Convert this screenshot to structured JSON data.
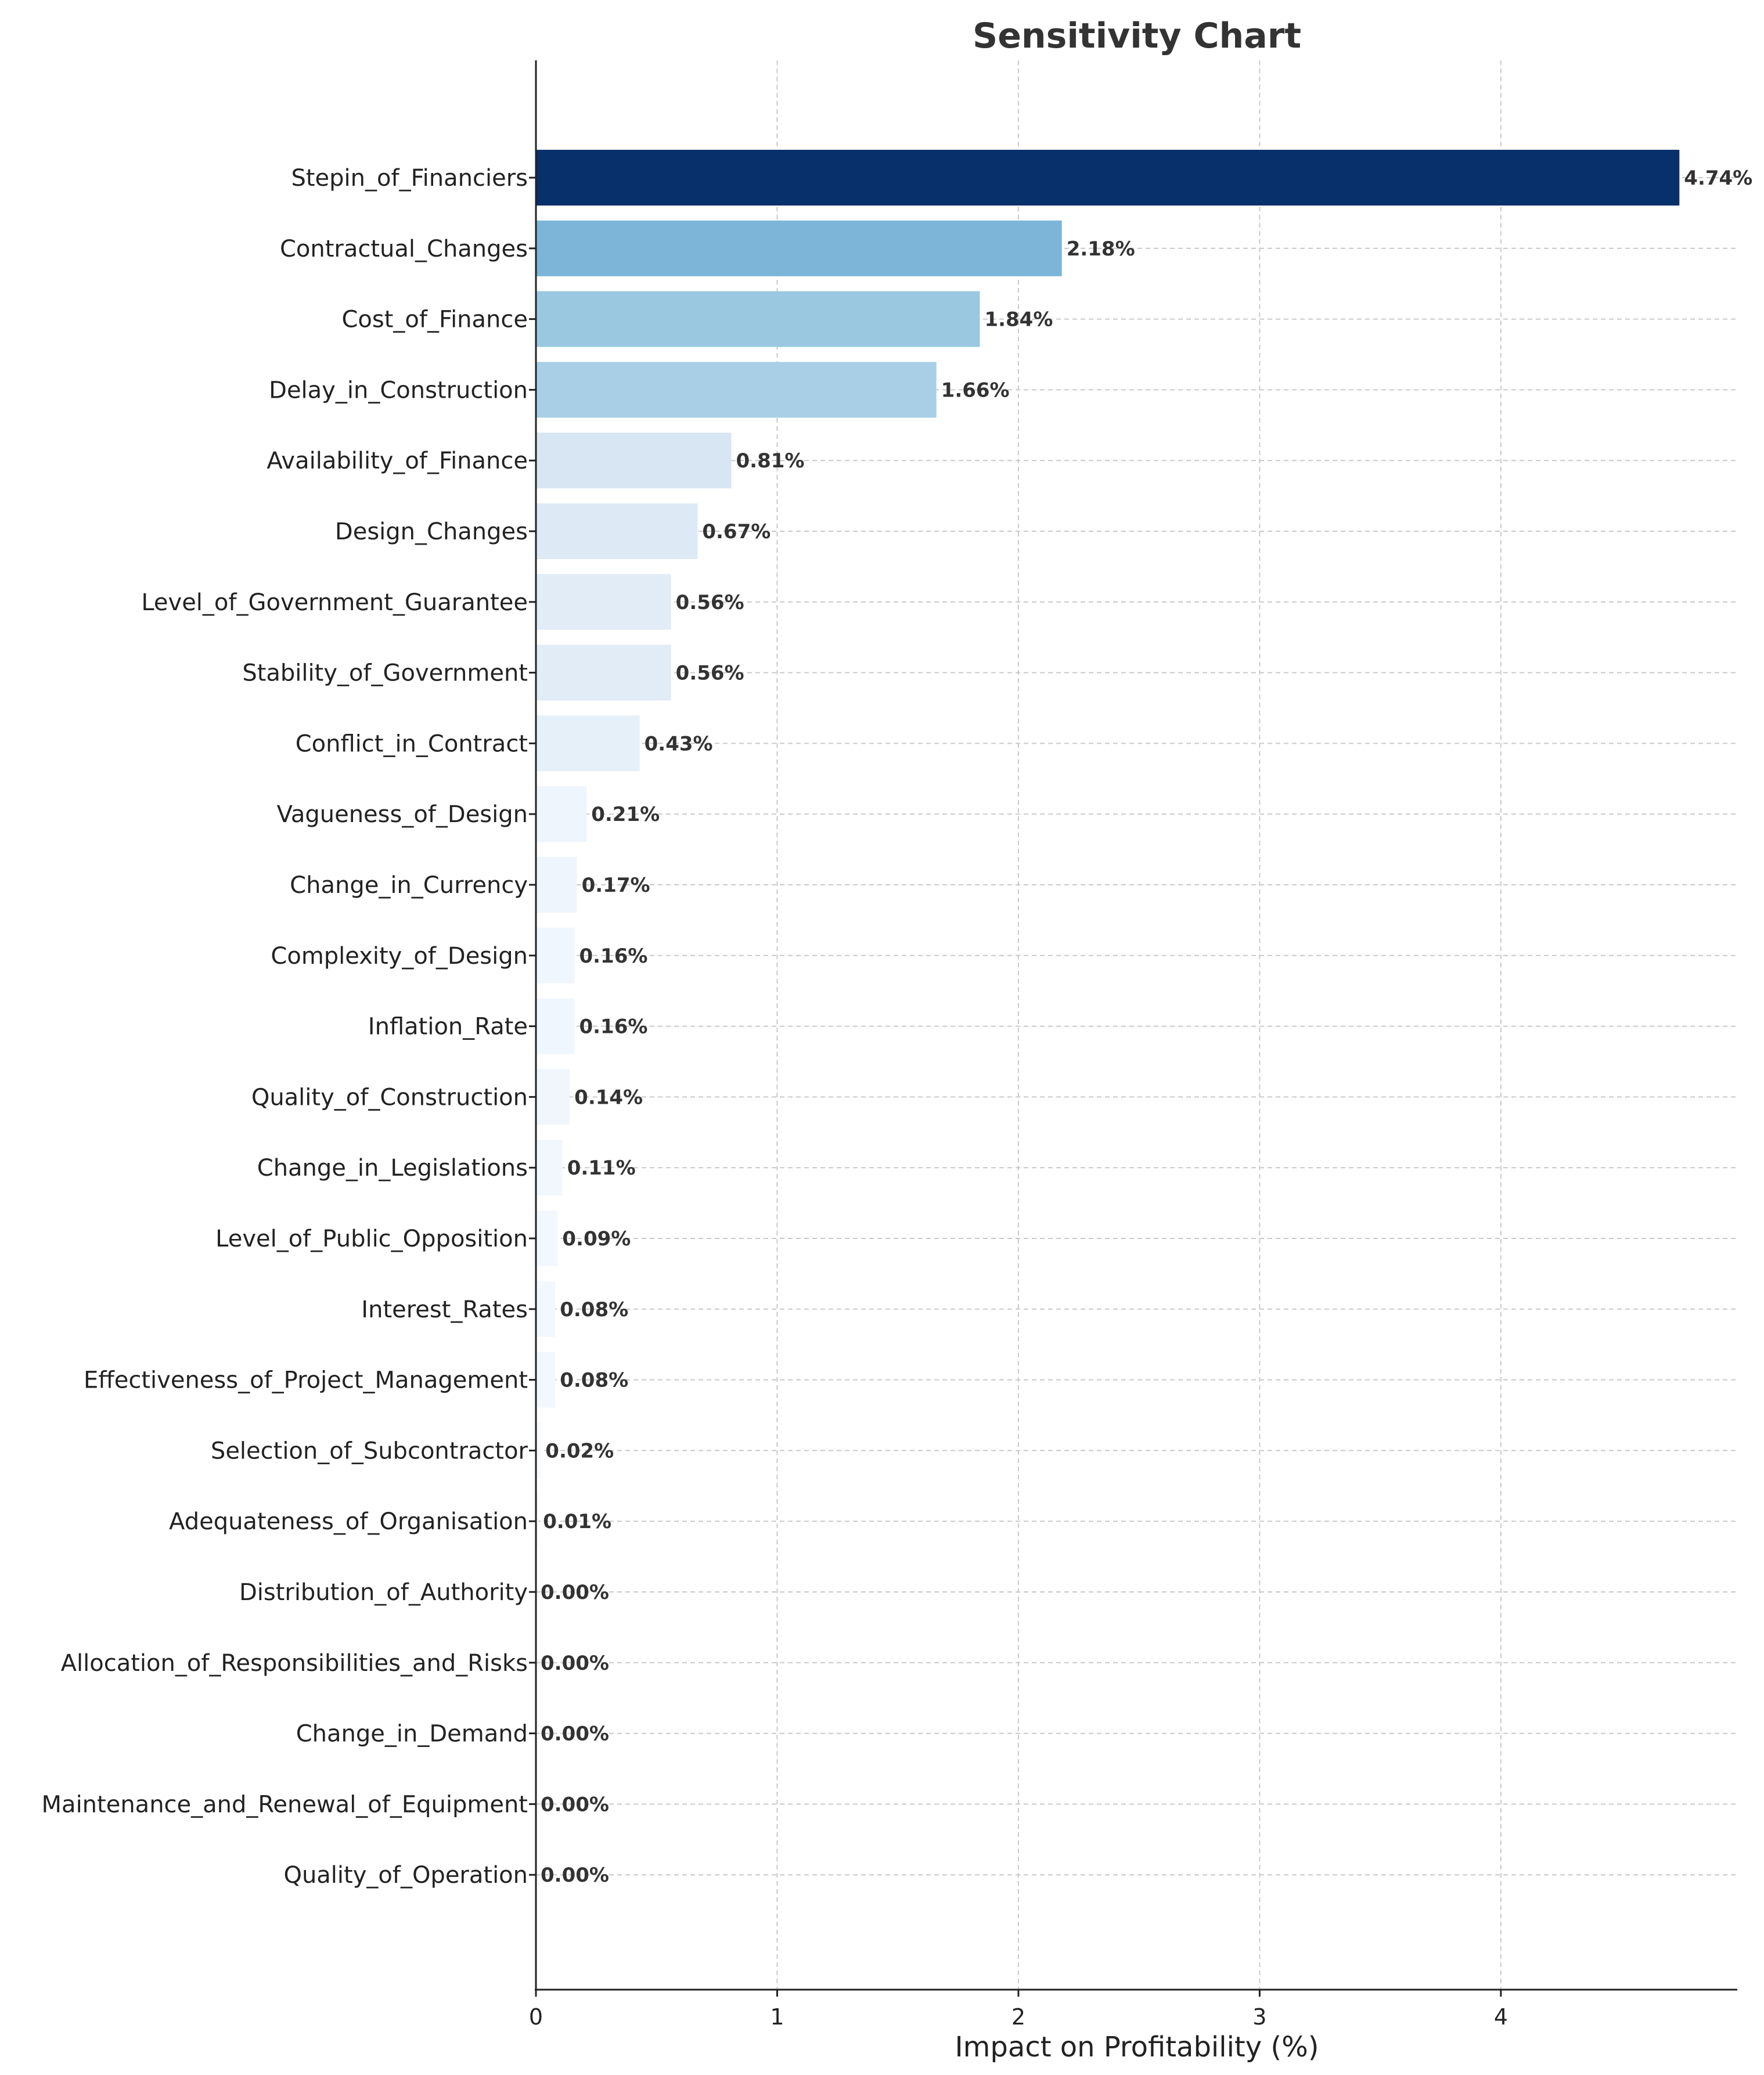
{
  "chart_data": {
    "type": "bar",
    "orientation": "horizontal",
    "title": "Sensitivity Chart",
    "xlabel": "Impact on Profitability (%)",
    "ylabel": "",
    "xlim": [
      0,
      4.98
    ],
    "xticks": [
      0,
      1,
      2,
      3,
      4
    ],
    "grid": true,
    "value_suffix": "%",
    "categories": [
      "Stepin_of_Financiers",
      "Contractual_Changes",
      "Cost_of_Finance",
      "Delay_in_Construction",
      "Availability_of_Finance",
      "Design_Changes",
      "Level_of_Government_Guarantee",
      "Stability_of_Government",
      "Conflict_in_Contract",
      "Vagueness_of_Design",
      "Change_in_Currency",
      "Complexity_of_Design",
      "Inflation_Rate",
      "Quality_of_Construction",
      "Change_in_Legislations",
      "Level_of_Public_Opposition",
      "Interest_Rates",
      "Effectiveness_of_Project_Management",
      "Selection_of_Subcontractor",
      "Adequateness_of_Organisation",
      "Distribution_of_Authority",
      "Allocation_of_Responsibilities_and_Risks",
      "Change_in_Demand",
      "Maintenance_and_Renewal_of_Equipment",
      "Quality_of_Operation"
    ],
    "values": [
      4.74,
      2.18,
      1.84,
      1.66,
      0.81,
      0.67,
      0.56,
      0.56,
      0.43,
      0.21,
      0.17,
      0.16,
      0.16,
      0.14,
      0.11,
      0.09,
      0.08,
      0.08,
      0.02,
      0.01,
      0.0,
      0.0,
      0.0,
      0.0,
      0.0
    ],
    "colors": [
      "#08306b",
      "#7db5d9",
      "#9ac8e1",
      "#a8cfe6",
      "#d8e6f4",
      "#dde9f5",
      "#e1ecf7",
      "#e1ecf7",
      "#e6f0f9",
      "#eef5fc",
      "#eff5fc",
      "#f0f6fd",
      "#f0f6fd",
      "#f1f6fd",
      "#f2f7fd",
      "#f3f8fe",
      "#f3f8fe",
      "#f3f8fe",
      "#f6fafe",
      "#f6fafe",
      "#f7fbff",
      "#f7fbff",
      "#f7fbff",
      "#f7fbff",
      "#f7fbff"
    ]
  }
}
